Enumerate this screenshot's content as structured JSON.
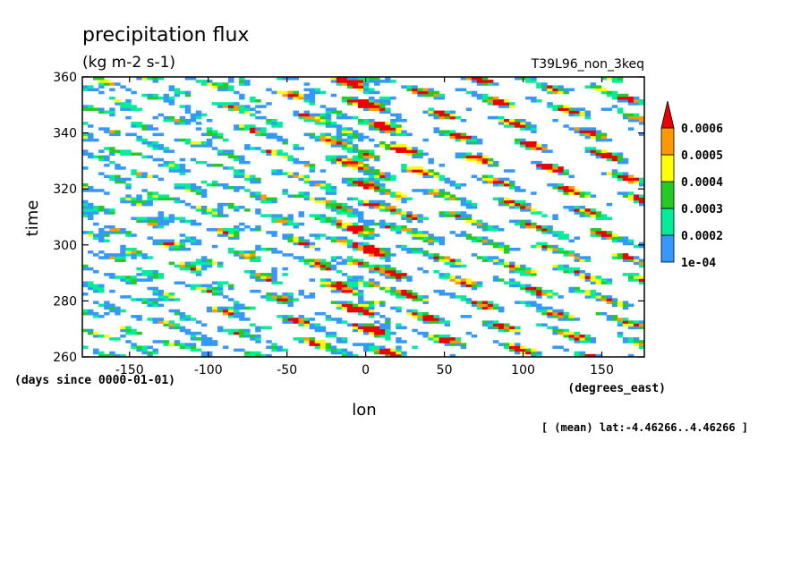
{
  "chart_data": {
    "type": "heatmap",
    "title": "precipitation flux",
    "units": "(kg m-2 s-1)",
    "run_label": "T39L96_non_3keq",
    "xlabel": "lon",
    "x_units": "(degrees_east)",
    "ylabel": "time",
    "y_units": "(days since 0000-01-01)",
    "footnote": "[ (mean) lat:-4.46266..4.46266 ]",
    "xlim": [
      -180,
      177
    ],
    "ylim": [
      260,
      360
    ],
    "x_ticks": [
      -150,
      -100,
      -50,
      0,
      50,
      100,
      150
    ],
    "x_tick_labels": [
      "-150",
      "-100",
      "-50",
      "0",
      "50",
      "100",
      "150"
    ],
    "y_ticks": [
      260,
      280,
      300,
      320,
      340,
      360
    ],
    "y_tick_labels": [
      "260",
      "280",
      "300",
      "320",
      "340",
      "360"
    ],
    "colorbar": {
      "levels": [
        "1e-04",
        "0.0002",
        "0.0003",
        "0.0004",
        "0.0005",
        "0.0006"
      ],
      "colors": [
        "#3399ff",
        "#00ee99",
        "#22cc22",
        "#ffff00",
        "#ff9900",
        "#ee0000"
      ],
      "extend": "max"
    },
    "grid": false
  }
}
